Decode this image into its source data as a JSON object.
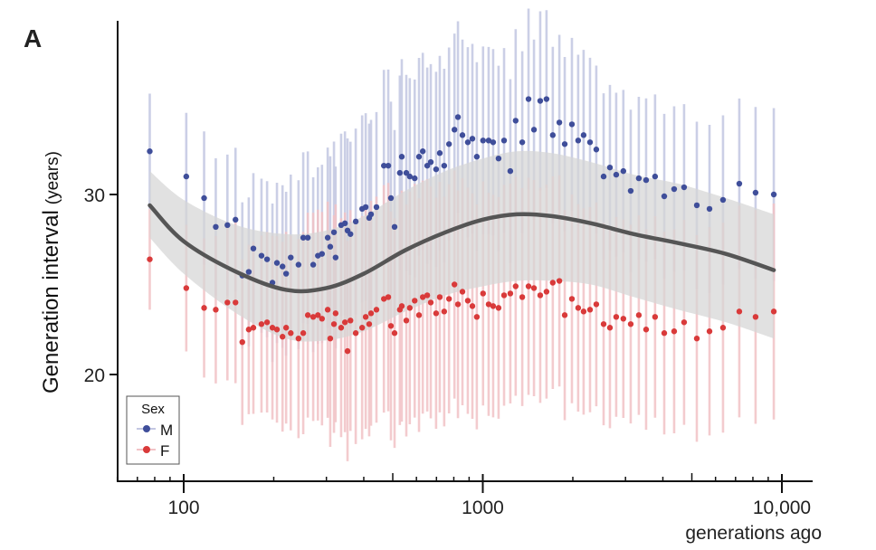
{
  "panel_label": "A",
  "chart_data": {
    "type": "scatter",
    "ylabel": "Generation interval",
    "ylabel_unit": "(years)",
    "xlabel": "generations ago",
    "x_scale": "log",
    "xlim": [
      62,
      11500
    ],
    "ylim": [
      14.1,
      39.6
    ],
    "x_ticks": [
      {
        "value": 100,
        "label": "100"
      },
      {
        "value": 1000,
        "label": "1000"
      },
      {
        "value": 10000,
        "label": "10,000"
      }
    ],
    "y_ticks": [
      {
        "value": 20,
        "label": "20"
      },
      {
        "value": 30,
        "label": "30"
      }
    ],
    "grid": false,
    "legend": {
      "title": "Sex",
      "placement": "bottom-left"
    },
    "x": [
      77,
      102,
      117,
      128,
      140,
      149,
      157,
      165,
      171,
      182,
      190,
      198,
      205,
      214,
      220,
      228,
      242,
      251,
      260,
      271,
      281,
      290,
      303,
      309,
      318,
      322,
      336,
      346,
      353,
      361,
      376,
      395,
      406,
      417,
      423,
      441,
      467,
      483,
      493,
      507,
      528,
      536,
      555,
      570,
      592,
      612,
      630,
      652,
      670,
      698,
      718,
      743,
      771,
      804,
      826,
      855,
      891,
      923,
      955,
      1002,
      1046,
      1083,
      1129,
      1178,
      1236,
      1288,
      1355,
      1422,
      1483,
      1556,
      1633,
      1714,
      1803,
      1879,
      1986,
      2084,
      2173,
      2283,
      2396,
      2535,
      2661,
      2793,
      2951,
      3123,
      3324,
      3516,
      3767,
      4043,
      4363,
      4710,
      5195,
      5728,
      6356,
      7205,
      8166,
      9397
    ],
    "series": [
      {
        "name": "M",
        "color": "#3f4e9a",
        "error_color": "#c3c7e2",
        "values": [
          32.4,
          31.0,
          29.8,
          28.2,
          28.3,
          28.6,
          25.5,
          25.7,
          27.0,
          26.6,
          26.4,
          25.1,
          26.2,
          26.0,
          25.6,
          26.5,
          26.1,
          27.6,
          27.6,
          26.1,
          26.6,
          26.7,
          27.6,
          27.1,
          27.9,
          26.5,
          28.3,
          28.4,
          28.0,
          27.8,
          28.5,
          29.2,
          29.3,
          28.7,
          28.9,
          29.3,
          31.6,
          31.6,
          29.8,
          28.2,
          31.2,
          32.1,
          31.2,
          31.0,
          30.9,
          32.1,
          32.4,
          31.6,
          31.8,
          31.4,
          32.3,
          31.6,
          32.8,
          33.6,
          34.3,
          33.3,
          32.9,
          33.1,
          32.1,
          33.0,
          33.0,
          32.9,
          32.0,
          33.0,
          31.3,
          34.1,
          32.9,
          35.3,
          33.6,
          35.2,
          35.3,
          33.3,
          34.0,
          32.8,
          33.9,
          33.0,
          33.3,
          32.9,
          32.5,
          31.0,
          31.5,
          31.1,
          31.3,
          30.2,
          30.9,
          30.8,
          31.0,
          29.9,
          30.3,
          30.4,
          29.4,
          29.2,
          29.7,
          30.6,
          30.1,
          30.0
        ],
        "error_halfwidth": [
          [
            77,
            3.2
          ],
          [
            150,
            4.0
          ],
          [
            300,
            5.0
          ],
          [
            600,
            5.5
          ],
          [
            1500,
            5.0
          ],
          [
            3000,
            4.5
          ],
          [
            9400,
            4.8
          ]
        ]
      },
      {
        "name": "F",
        "color": "#d93a3a",
        "error_color": "#f2c3c6",
        "values": [
          26.4,
          24.8,
          23.7,
          23.6,
          24.0,
          24.0,
          21.8,
          22.5,
          22.6,
          22.8,
          22.9,
          22.6,
          22.5,
          22.1,
          22.6,
          22.3,
          22.0,
          22.3,
          23.3,
          23.2,
          23.3,
          23.1,
          23.6,
          22.0,
          22.8,
          23.4,
          22.6,
          22.9,
          21.3,
          23.0,
          22.3,
          22.6,
          23.2,
          22.8,
          23.4,
          23.6,
          24.2,
          24.3,
          22.7,
          22.3,
          23.6,
          23.8,
          23.0,
          23.7,
          24.1,
          23.3,
          24.3,
          24.4,
          24.0,
          23.4,
          24.3,
          23.5,
          24.2,
          25.0,
          23.9,
          24.6,
          24.1,
          23.8,
          23.2,
          24.5,
          23.9,
          23.8,
          23.7,
          24.4,
          24.5,
          24.9,
          24.3,
          24.9,
          24.8,
          24.4,
          24.6,
          25.1,
          25.2,
          23.3,
          24.2,
          23.7,
          23.5,
          23.6,
          23.9,
          22.8,
          22.6,
          23.2,
          23.1,
          22.8,
          23.3,
          22.5,
          23.2,
          22.3,
          22.4,
          22.9,
          22.0,
          22.4,
          22.6,
          23.5,
          23.2,
          23.5
        ],
        "error_halfwidth": [
          [
            77,
            2.8
          ],
          [
            150,
            4.5
          ],
          [
            300,
            6.0
          ],
          [
            600,
            6.5
          ],
          [
            1500,
            6.0
          ],
          [
            3000,
            5.5
          ],
          [
            9400,
            6.0
          ]
        ]
      }
    ],
    "smooth": {
      "color": "#555555",
      "band_color": "#d6d6d6",
      "x": [
        77,
        100,
        150,
        220,
        300,
        400,
        550,
        750,
        1000,
        1300,
        1700,
        2300,
        3200,
        4500,
        6500,
        9400
      ],
      "y": [
        29.4,
        27.4,
        25.7,
        24.7,
        24.8,
        25.6,
        26.9,
        27.9,
        28.6,
        28.9,
        28.8,
        28.4,
        27.8,
        27.3,
        26.7,
        25.8
      ],
      "lower": [
        27.6,
        25.6,
        23.4,
        22.0,
        21.9,
        22.4,
        23.5,
        24.4,
        24.9,
        25.2,
        25.2,
        25.0,
        24.3,
        23.6,
        22.9,
        22.0
      ],
      "upper": [
        31.3,
        29.7,
        28.3,
        27.8,
        28.0,
        28.8,
        30.2,
        31.3,
        32.0,
        32.4,
        32.3,
        31.8,
        31.1,
        30.6,
        29.8,
        28.9
      ]
    }
  }
}
